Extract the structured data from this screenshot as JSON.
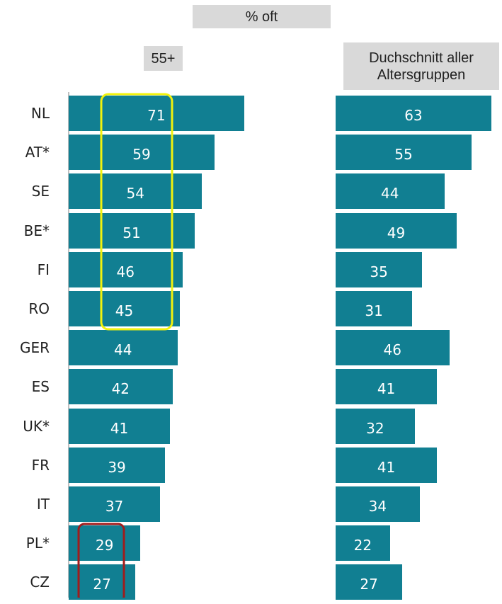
{
  "chart_data": {
    "type": "bar",
    "title": "% oft",
    "categories": [
      "NL",
      "AT*",
      "SE",
      "BE*",
      "FI",
      "RO",
      "GER",
      "ES",
      "UK*",
      "FR",
      "IT",
      "PL*",
      "CZ"
    ],
    "series": [
      {
        "name": "55+",
        "color": "#117f92",
        "values": [
          71,
          59,
          54,
          51,
          46,
          45,
          44,
          42,
          41,
          39,
          37,
          29,
          27
        ]
      },
      {
        "name": "Duchschnitt aller Altersgruppen",
        "color": "#117f92",
        "values": [
          63,
          55,
          44,
          49,
          35,
          31,
          46,
          41,
          32,
          41,
          34,
          22,
          27
        ]
      }
    ]
  }
}
